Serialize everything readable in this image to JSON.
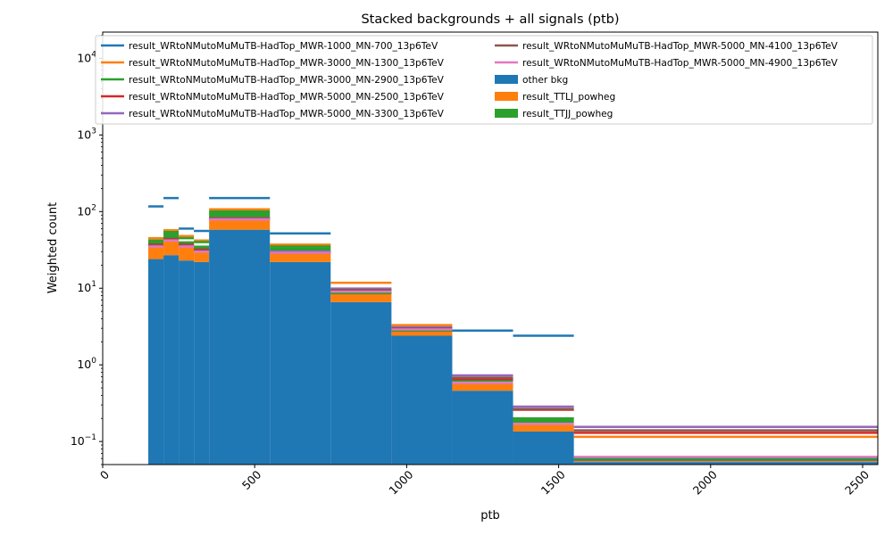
{
  "chart_data": {
    "type": "bar",
    "title": "Stacked backgrounds + all signals (ptb)",
    "xlabel": "ptb",
    "ylabel": "Weighted count",
    "xlim": [
      0,
      2550
    ],
    "ylim": [
      0.05,
      22000
    ],
    "yscale": "log",
    "grid": false,
    "legend_position": "top",
    "xticks": [
      0,
      500,
      1000,
      1500,
      2000,
      2500
    ],
    "xtick_labels": [
      "0",
      "500",
      "1000",
      "1500",
      "2000",
      "2500"
    ],
    "yticks": [
      0.1,
      1,
      10,
      100,
      1000,
      10000
    ],
    "ytick_labels": [
      {
        "base": "10",
        "exp": "−1"
      },
      {
        "base": "10",
        "exp": "0"
      },
      {
        "base": "10",
        "exp": "1"
      },
      {
        "base": "10",
        "exp": "2"
      },
      {
        "base": "10",
        "exp": "3"
      },
      {
        "base": "10",
        "exp": "4"
      }
    ],
    "bin_edges": [
      150,
      200,
      250,
      300,
      350,
      550,
      750,
      950,
      1150,
      1350,
      1550,
      2550
    ],
    "stack": [
      {
        "name": "other bkg",
        "color": "#1f77b4",
        "values": [
          24,
          27,
          23,
          22,
          58,
          22,
          6.6,
          2.4,
          0.46,
          0.135,
          0.054
        ]
      },
      {
        "name": "result_TTLJ_powheg",
        "color": "#ff7f0e",
        "values": [
          12,
          15,
          12,
          9,
          24,
          7.5,
          2.0,
          0.55,
          0.1,
          0.04,
          0.004
        ]
      },
      {
        "name": "result_TTJJ_powheg",
        "color": "#2ca02c",
        "values": [
          5,
          11,
          6,
          5,
          16,
          4.5,
          0.6,
          0.1,
          0.02,
          0.02,
          0.001
        ]
      }
    ],
    "signals": [
      {
        "name": "result_WRtoNMutoMuMuTB-HadTop_MWR-1000_MN-700_13p6TeV",
        "color": "#1f77b4",
        "values": [
          117,
          150,
          60,
          56,
          150,
          52,
          9.0,
          2.9,
          2.8,
          2.4,
          0.058
        ]
      },
      {
        "name": "result_WRtoNMutoMuMuTB-HadTop_MWR-3000_MN-1300_13p6TeV",
        "color": "#ff7f0e",
        "values": [
          45,
          57,
          48,
          42,
          107,
          37,
          11.8,
          3.3,
          0.55,
          0.2,
          0.115
        ]
      },
      {
        "name": "result_WRtoNMutoMuMuTB-HadTop_MWR-3000_MN-2900_13p6TeV",
        "color": "#2ca02c",
        "values": [
          42,
          54,
          45,
          40,
          100,
          35,
          8.6,
          2.8,
          0.62,
          0.2,
          0.06
        ]
      },
      {
        "name": "result_WRtoNMutoMuMuTB-HadTop_MWR-5000_MN-2500_13p6TeV",
        "color": "#d62728",
        "values": [
          37,
          44,
          37,
          32,
          82,
          30,
          9.0,
          2.9,
          0.65,
          0.26,
          0.13
        ]
      },
      {
        "name": "result_WRtoNMutoMuMuTB-HadTop_MWR-5000_MN-3300_13p6TeV",
        "color": "#9467bd",
        "values": [
          36,
          43,
          36,
          31,
          81,
          30,
          9.9,
          3.1,
          0.73,
          0.285,
          0.155
        ]
      },
      {
        "name": "result_WRtoNMutoMuMuTB-HadTop_MWR-5000_MN-4100_13p6TeV",
        "color": "#8c564b",
        "values": [
          36,
          43,
          36,
          31,
          80,
          29,
          9.5,
          3.0,
          0.68,
          0.265,
          0.14
        ]
      },
      {
        "name": "result_WRtoNMutoMuMuTB-HadTop_MWR-5000_MN-4900_13p6TeV",
        "color": "#e377c2",
        "values": [
          35,
          42,
          35,
          30,
          79,
          29,
          9.0,
          2.9,
          0.58,
          0.17,
          0.063
        ]
      }
    ]
  }
}
